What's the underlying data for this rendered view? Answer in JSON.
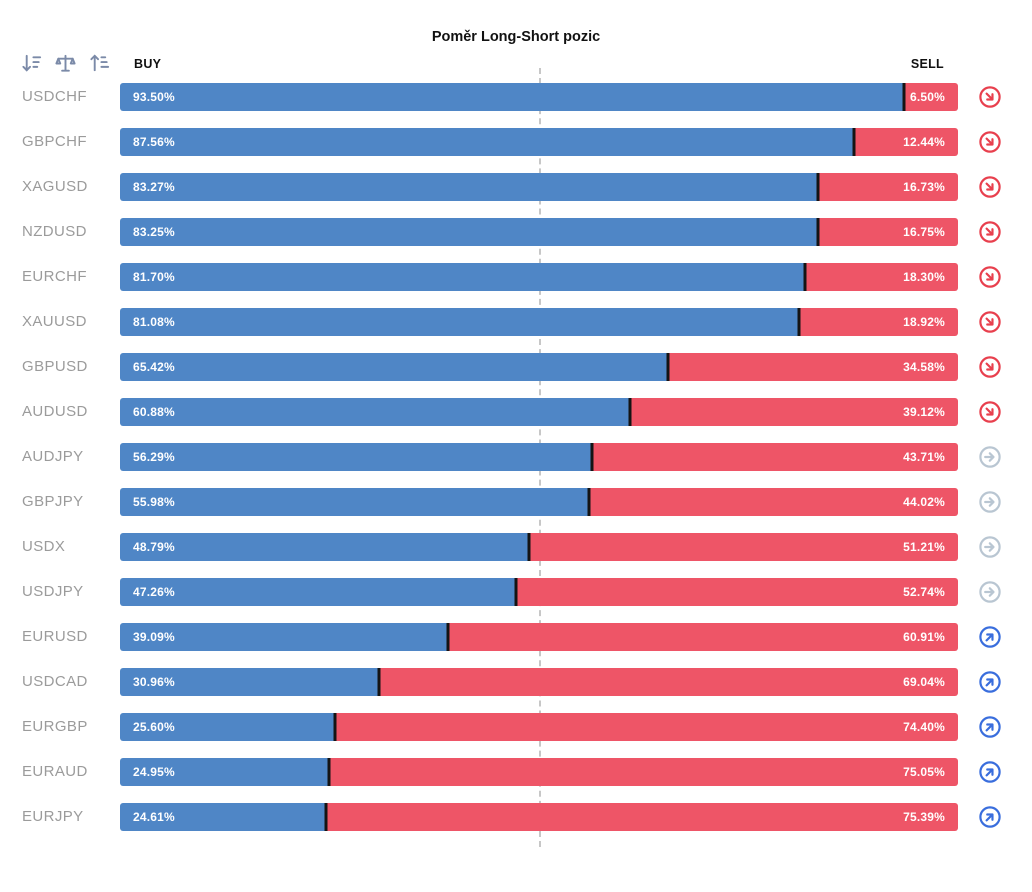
{
  "title": "Poměr Long-Short pozic",
  "columns": {
    "buy": "BUY",
    "sell": "SELL"
  },
  "toolbar": {
    "icons": [
      "sort-amount-icon",
      "scale-icon",
      "sort-numeric-icon"
    ],
    "icon_color": "#7b8aa8"
  },
  "colors": {
    "buy": "#4f86c6",
    "sell": "#ee5567",
    "signal_down": "#e8404e",
    "signal_neutral": "#b9c6d2",
    "signal_up": "#3a6edd",
    "midline": "#c7c7c7",
    "divider": "#141414",
    "pair_label": "#9b9b9b"
  },
  "rows": [
    {
      "pair": "USDCHF",
      "buy": 93.5,
      "sell": 6.5,
      "buy_label": "93.50%",
      "sell_label": "6.50%",
      "signal": "down"
    },
    {
      "pair": "GBPCHF",
      "buy": 87.56,
      "sell": 12.44,
      "buy_label": "87.56%",
      "sell_label": "12.44%",
      "signal": "down"
    },
    {
      "pair": "XAGUSD",
      "buy": 83.27,
      "sell": 16.73,
      "buy_label": "83.27%",
      "sell_label": "16.73%",
      "signal": "down"
    },
    {
      "pair": "NZDUSD",
      "buy": 83.25,
      "sell": 16.75,
      "buy_label": "83.25%",
      "sell_label": "16.75%",
      "signal": "down"
    },
    {
      "pair": "EURCHF",
      "buy": 81.7,
      "sell": 18.3,
      "buy_label": "81.70%",
      "sell_label": "18.30%",
      "signal": "down"
    },
    {
      "pair": "XAUUSD",
      "buy": 81.08,
      "sell": 18.92,
      "buy_label": "81.08%",
      "sell_label": "18.92%",
      "signal": "down"
    },
    {
      "pair": "GBPUSD",
      "buy": 65.42,
      "sell": 34.58,
      "buy_label": "65.42%",
      "sell_label": "34.58%",
      "signal": "down"
    },
    {
      "pair": "AUDUSD",
      "buy": 60.88,
      "sell": 39.12,
      "buy_label": "60.88%",
      "sell_label": "39.12%",
      "signal": "down"
    },
    {
      "pair": "AUDJPY",
      "buy": 56.29,
      "sell": 43.71,
      "buy_label": "56.29%",
      "sell_label": "43.71%",
      "signal": "neutral"
    },
    {
      "pair": "GBPJPY",
      "buy": 55.98,
      "sell": 44.02,
      "buy_label": "55.98%",
      "sell_label": "44.02%",
      "signal": "neutral"
    },
    {
      "pair": "USDX",
      "buy": 48.79,
      "sell": 51.21,
      "buy_label": "48.79%",
      "sell_label": "51.21%",
      "signal": "neutral"
    },
    {
      "pair": "USDJPY",
      "buy": 47.26,
      "sell": 52.74,
      "buy_label": "47.26%",
      "sell_label": "52.74%",
      "signal": "neutral"
    },
    {
      "pair": "EURUSD",
      "buy": 39.09,
      "sell": 60.91,
      "buy_label": "39.09%",
      "sell_label": "60.91%",
      "signal": "up"
    },
    {
      "pair": "USDCAD",
      "buy": 30.96,
      "sell": 69.04,
      "buy_label": "30.96%",
      "sell_label": "69.04%",
      "signal": "up"
    },
    {
      "pair": "EURGBP",
      "buy": 25.6,
      "sell": 74.4,
      "buy_label": "25.60%",
      "sell_label": "74.40%",
      "signal": "up"
    },
    {
      "pair": "EURAUD",
      "buy": 24.95,
      "sell": 75.05,
      "buy_label": "24.95%",
      "sell_label": "75.05%",
      "signal": "up"
    },
    {
      "pair": "EURJPY",
      "buy": 24.61,
      "sell": 75.39,
      "buy_label": "24.61%",
      "sell_label": "75.39%",
      "signal": "up"
    }
  ],
  "chart_data": {
    "type": "bar",
    "subtype": "horizontal-stacked-percent",
    "title": "Poměr Long-Short pozic",
    "categories": [
      "USDCHF",
      "GBPCHF",
      "XAGUSD",
      "NZDUSD",
      "EURCHF",
      "XAUUSD",
      "GBPUSD",
      "AUDUSD",
      "AUDJPY",
      "GBPJPY",
      "USDX",
      "USDJPY",
      "EURUSD",
      "USDCAD",
      "EURGBP",
      "EURAUD",
      "EURJPY"
    ],
    "series": [
      {
        "name": "BUY",
        "color": "#4f86c6",
        "values": [
          93.5,
          87.56,
          83.27,
          83.25,
          81.7,
          81.08,
          65.42,
          60.88,
          56.29,
          55.98,
          48.79,
          47.26,
          39.09,
          30.96,
          25.6,
          24.95,
          24.61
        ]
      },
      {
        "name": "SELL",
        "color": "#ee5567",
        "values": [
          6.5,
          12.44,
          16.73,
          16.75,
          18.3,
          18.92,
          34.58,
          39.12,
          43.71,
          44.02,
          51.21,
          52.74,
          60.91,
          69.04,
          74.4,
          75.05,
          75.39
        ]
      }
    ],
    "xlim": [
      0,
      100
    ],
    "midline": 50,
    "legend_position": "column-headers",
    "grid": "center-dashed-line-only",
    "signals": [
      "down",
      "down",
      "down",
      "down",
      "down",
      "down",
      "down",
      "down",
      "neutral",
      "neutral",
      "neutral",
      "neutral",
      "up",
      "up",
      "up",
      "up",
      "up"
    ]
  }
}
